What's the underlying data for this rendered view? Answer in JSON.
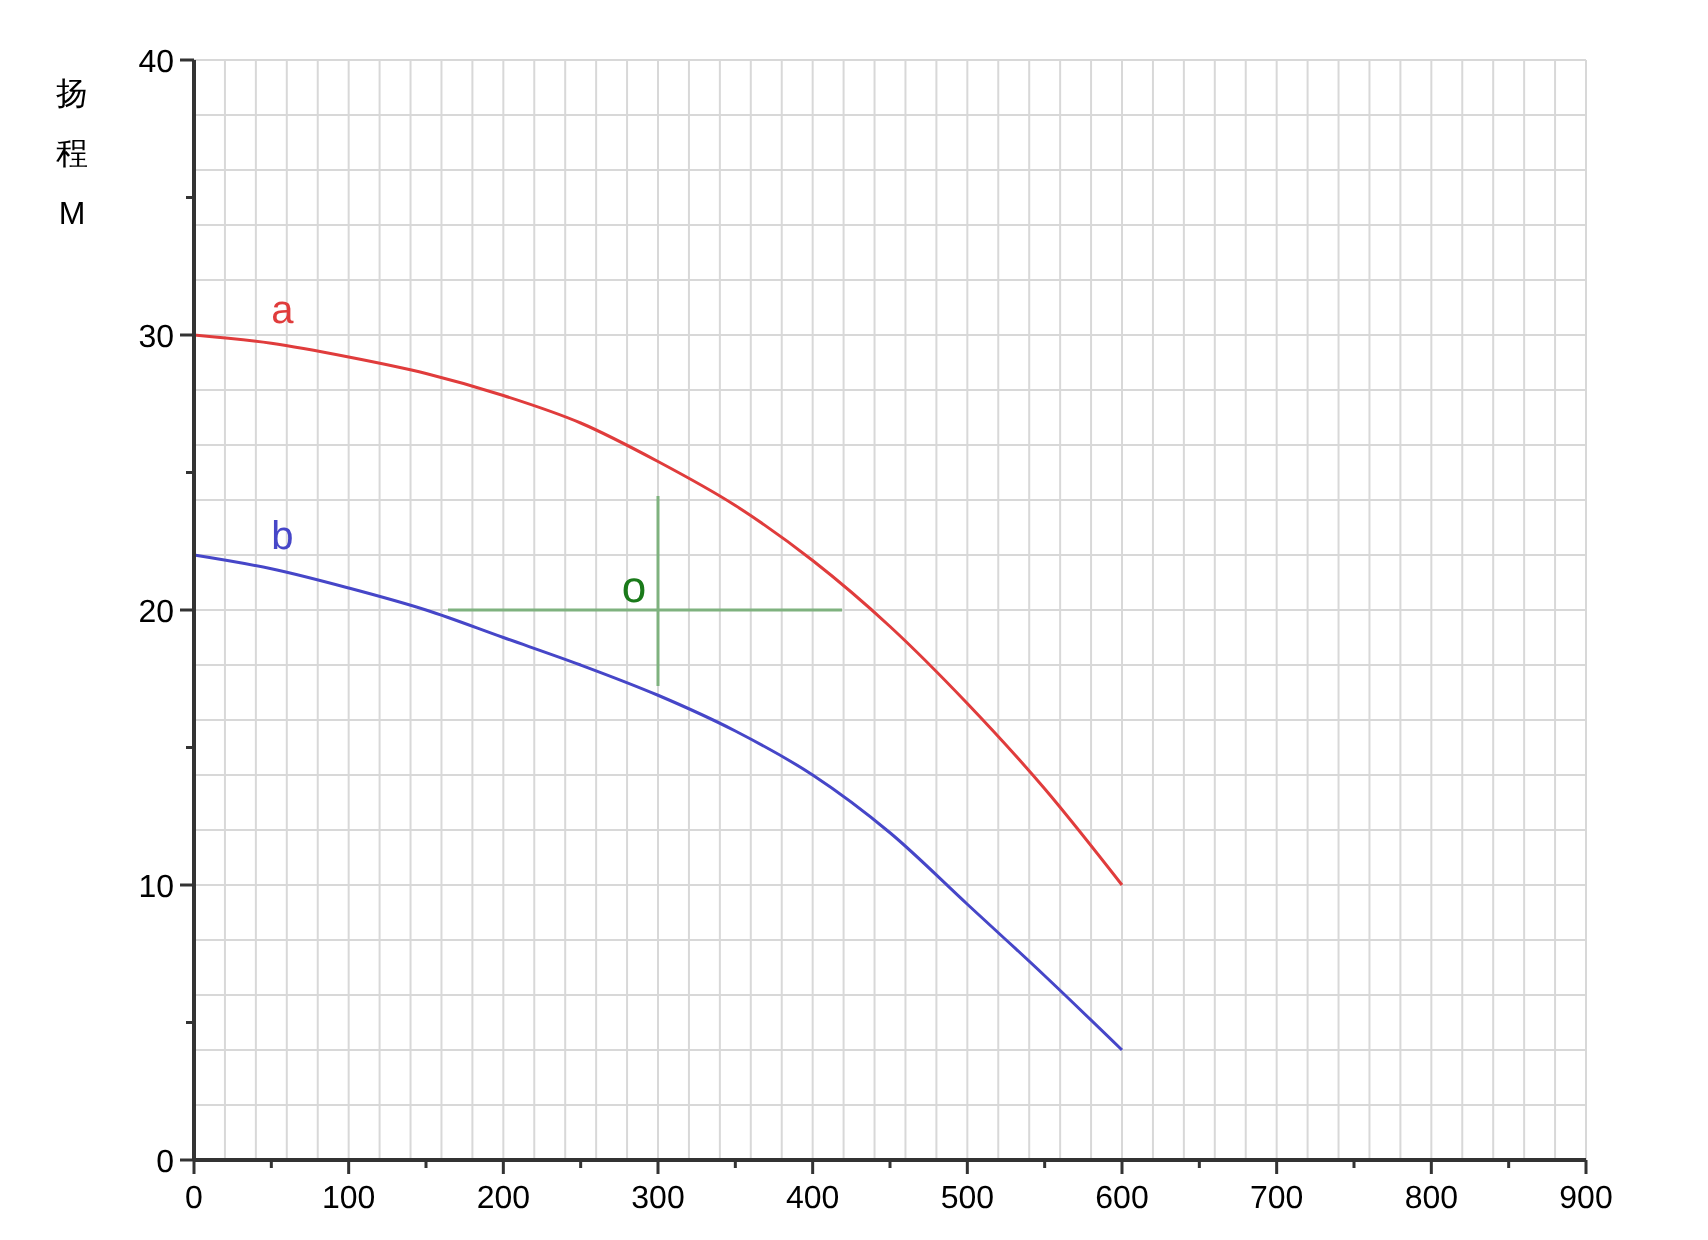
{
  "chart_data": {
    "type": "line",
    "ylabel": "扬程M",
    "x": [
      0,
      50,
      100,
      150,
      200,
      250,
      300,
      350,
      400,
      450,
      500,
      550,
      600
    ],
    "series": [
      {
        "name": "a",
        "color": "#e03c3c",
        "values": [
          30,
          29.7,
          29.2,
          28.6,
          27.8,
          26.8,
          25.4,
          23.8,
          21.8,
          19.4,
          16.6,
          13.5,
          10
        ]
      },
      {
        "name": "b",
        "color": "#4646c8",
        "values": [
          22,
          21.5,
          20.8,
          20,
          19,
          18,
          16.9,
          15.6,
          14,
          11.9,
          9.3,
          6.7,
          4
        ]
      }
    ],
    "xlim": [
      0,
      900
    ],
    "xticks": [
      0,
      100,
      200,
      300,
      400,
      500,
      600,
      700,
      800,
      900
    ],
    "ylim": [
      0,
      40
    ],
    "yticks": [
      0,
      10,
      20,
      30,
      40
    ],
    "grid": true,
    "marker": "none",
    "line_style": "solid",
    "annotations": [
      "o"
    ]
  }
}
